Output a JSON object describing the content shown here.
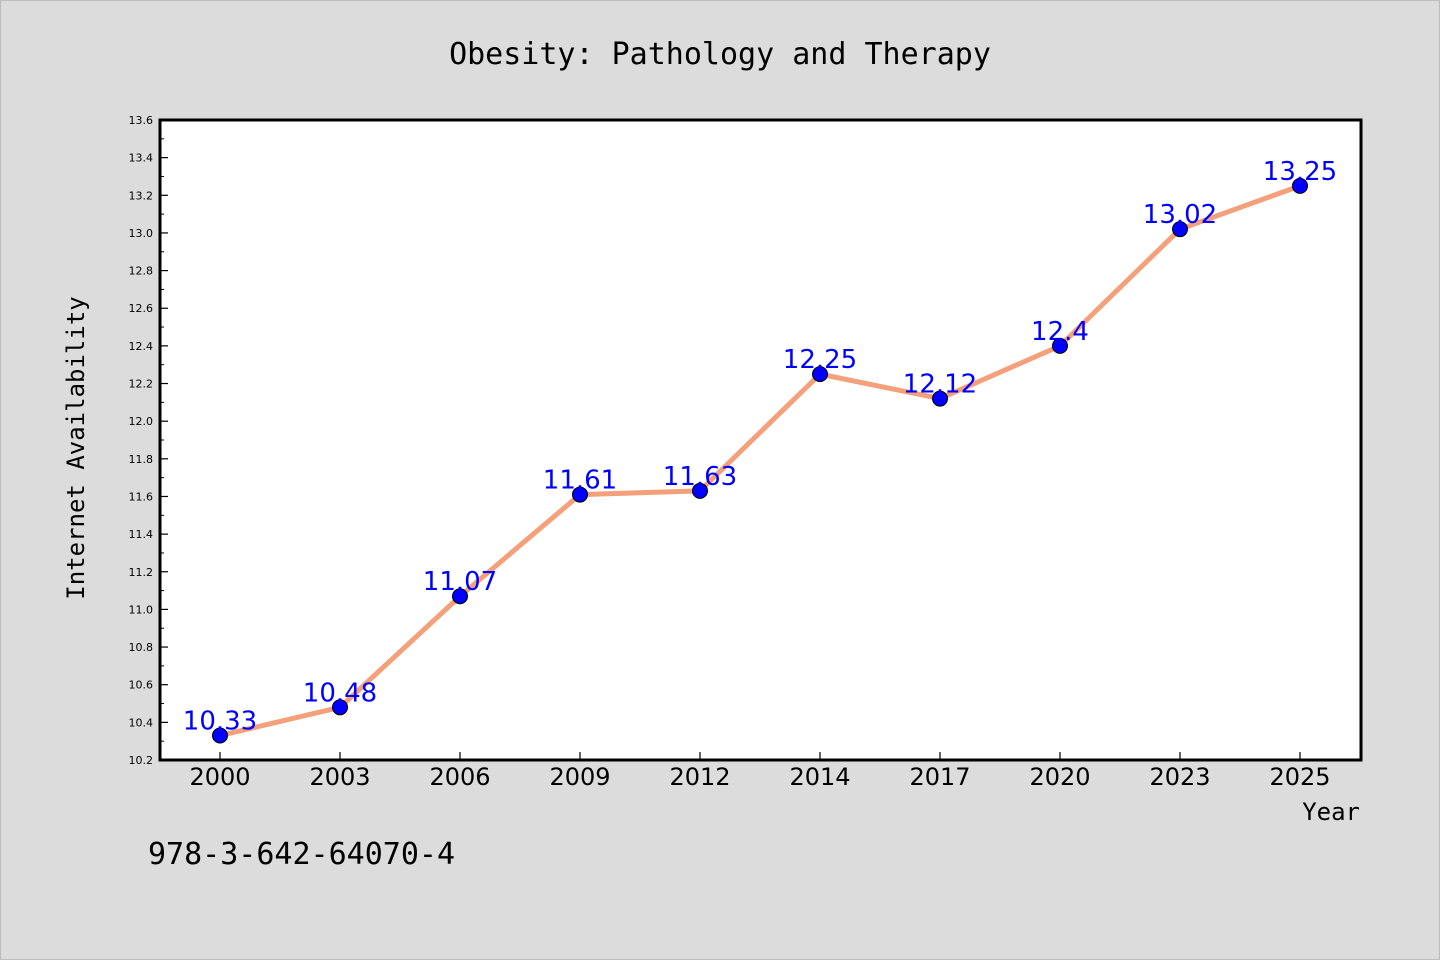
{
  "chart_data": {
    "type": "line",
    "title": "Obesity: Pathology and Therapy",
    "xlabel": "Year",
    "ylabel": "Internet Availability",
    "categories": [
      "2000",
      "2003",
      "2006",
      "2009",
      "2012",
      "2014",
      "2017",
      "2020",
      "2023",
      "2025"
    ],
    "series": [
      {
        "values": [
          10.33,
          10.48,
          11.07,
          11.61,
          11.63,
          12.25,
          12.12,
          12.4,
          13.02,
          13.25
        ],
        "labels": [
          "10.33",
          "10.48",
          "11.07",
          "11.61",
          "11.63",
          "12.25",
          "12.12",
          "12.4",
          "13.02",
          "13.25"
        ],
        "line_color": "#f4a07a",
        "marker_color": "#0000ff"
      }
    ],
    "ylim": [
      10.2,
      13.6
    ],
    "yticks": [
      "10.2",
      "10.4",
      "10.6",
      "10.8",
      "11.0",
      "11.2",
      "11.4",
      "11.6",
      "11.8",
      "12.0",
      "12.2",
      "12.4",
      "12.6",
      "12.8",
      "13.0",
      "13.2",
      "13.4",
      "13.6"
    ],
    "grid": false,
    "legend": "none",
    "label_color": "#0000ff"
  },
  "footer": {
    "isbn": "978-3-642-64070-4"
  }
}
